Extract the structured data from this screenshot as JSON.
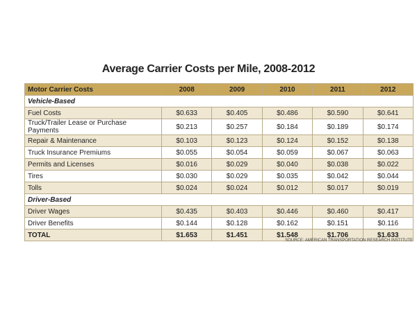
{
  "title": "Average Carrier Costs per Mile, 2008-2012",
  "table": {
    "columns": [
      "Motor Carrier Costs",
      "2008",
      "2009",
      "2010",
      "2011",
      "2012"
    ],
    "sections": [
      {
        "label": "Vehicle-Based",
        "rows": [
          [
            "Fuel Costs",
            "$0.633",
            "$0.405",
            "$0.486",
            "$0.590",
            "$0.641"
          ],
          [
            "Truck/Trailer Lease or Purchase Payments",
            "$0.213",
            "$0.257",
            "$0.184",
            "$0.189",
            "$0.174"
          ],
          [
            "Repair & Maintenance",
            "$0.103",
            "$0.123",
            "$0.124",
            "$0.152",
            "$0.138"
          ],
          [
            "Truck Insurance Premiums",
            "$0.055",
            "$0.054",
            "$0.059",
            "$0.067",
            "$0.063"
          ],
          [
            "Permits and Licenses",
            "$0.016",
            "$0.029",
            "$0.040",
            "$0.038",
            "$0.022"
          ],
          [
            "Tires",
            "$0.030",
            "$0.029",
            "$0.035",
            "$0.042",
            "$0.044"
          ],
          [
            "Tolls",
            "$0.024",
            "$0.024",
            "$0.012",
            "$0.017",
            "$0.019"
          ]
        ]
      },
      {
        "label": "Driver-Based",
        "rows": [
          [
            "Driver Wages",
            "$0.435",
            "$0.403",
            "$0.446",
            "$0.460",
            "$0.417"
          ],
          [
            "Driver Benefits",
            "$0.144",
            "$0.128",
            "$0.162",
            "$0.151",
            "$0.116"
          ]
        ]
      }
    ],
    "total": [
      "TOTAL",
      "$1.653",
      "$1.451",
      "$1.548",
      "$1.706",
      "$1.633"
    ]
  },
  "source": "SOURCE: AMERICAN TRANSPORTATION RESEARCH INSTITUTE"
}
